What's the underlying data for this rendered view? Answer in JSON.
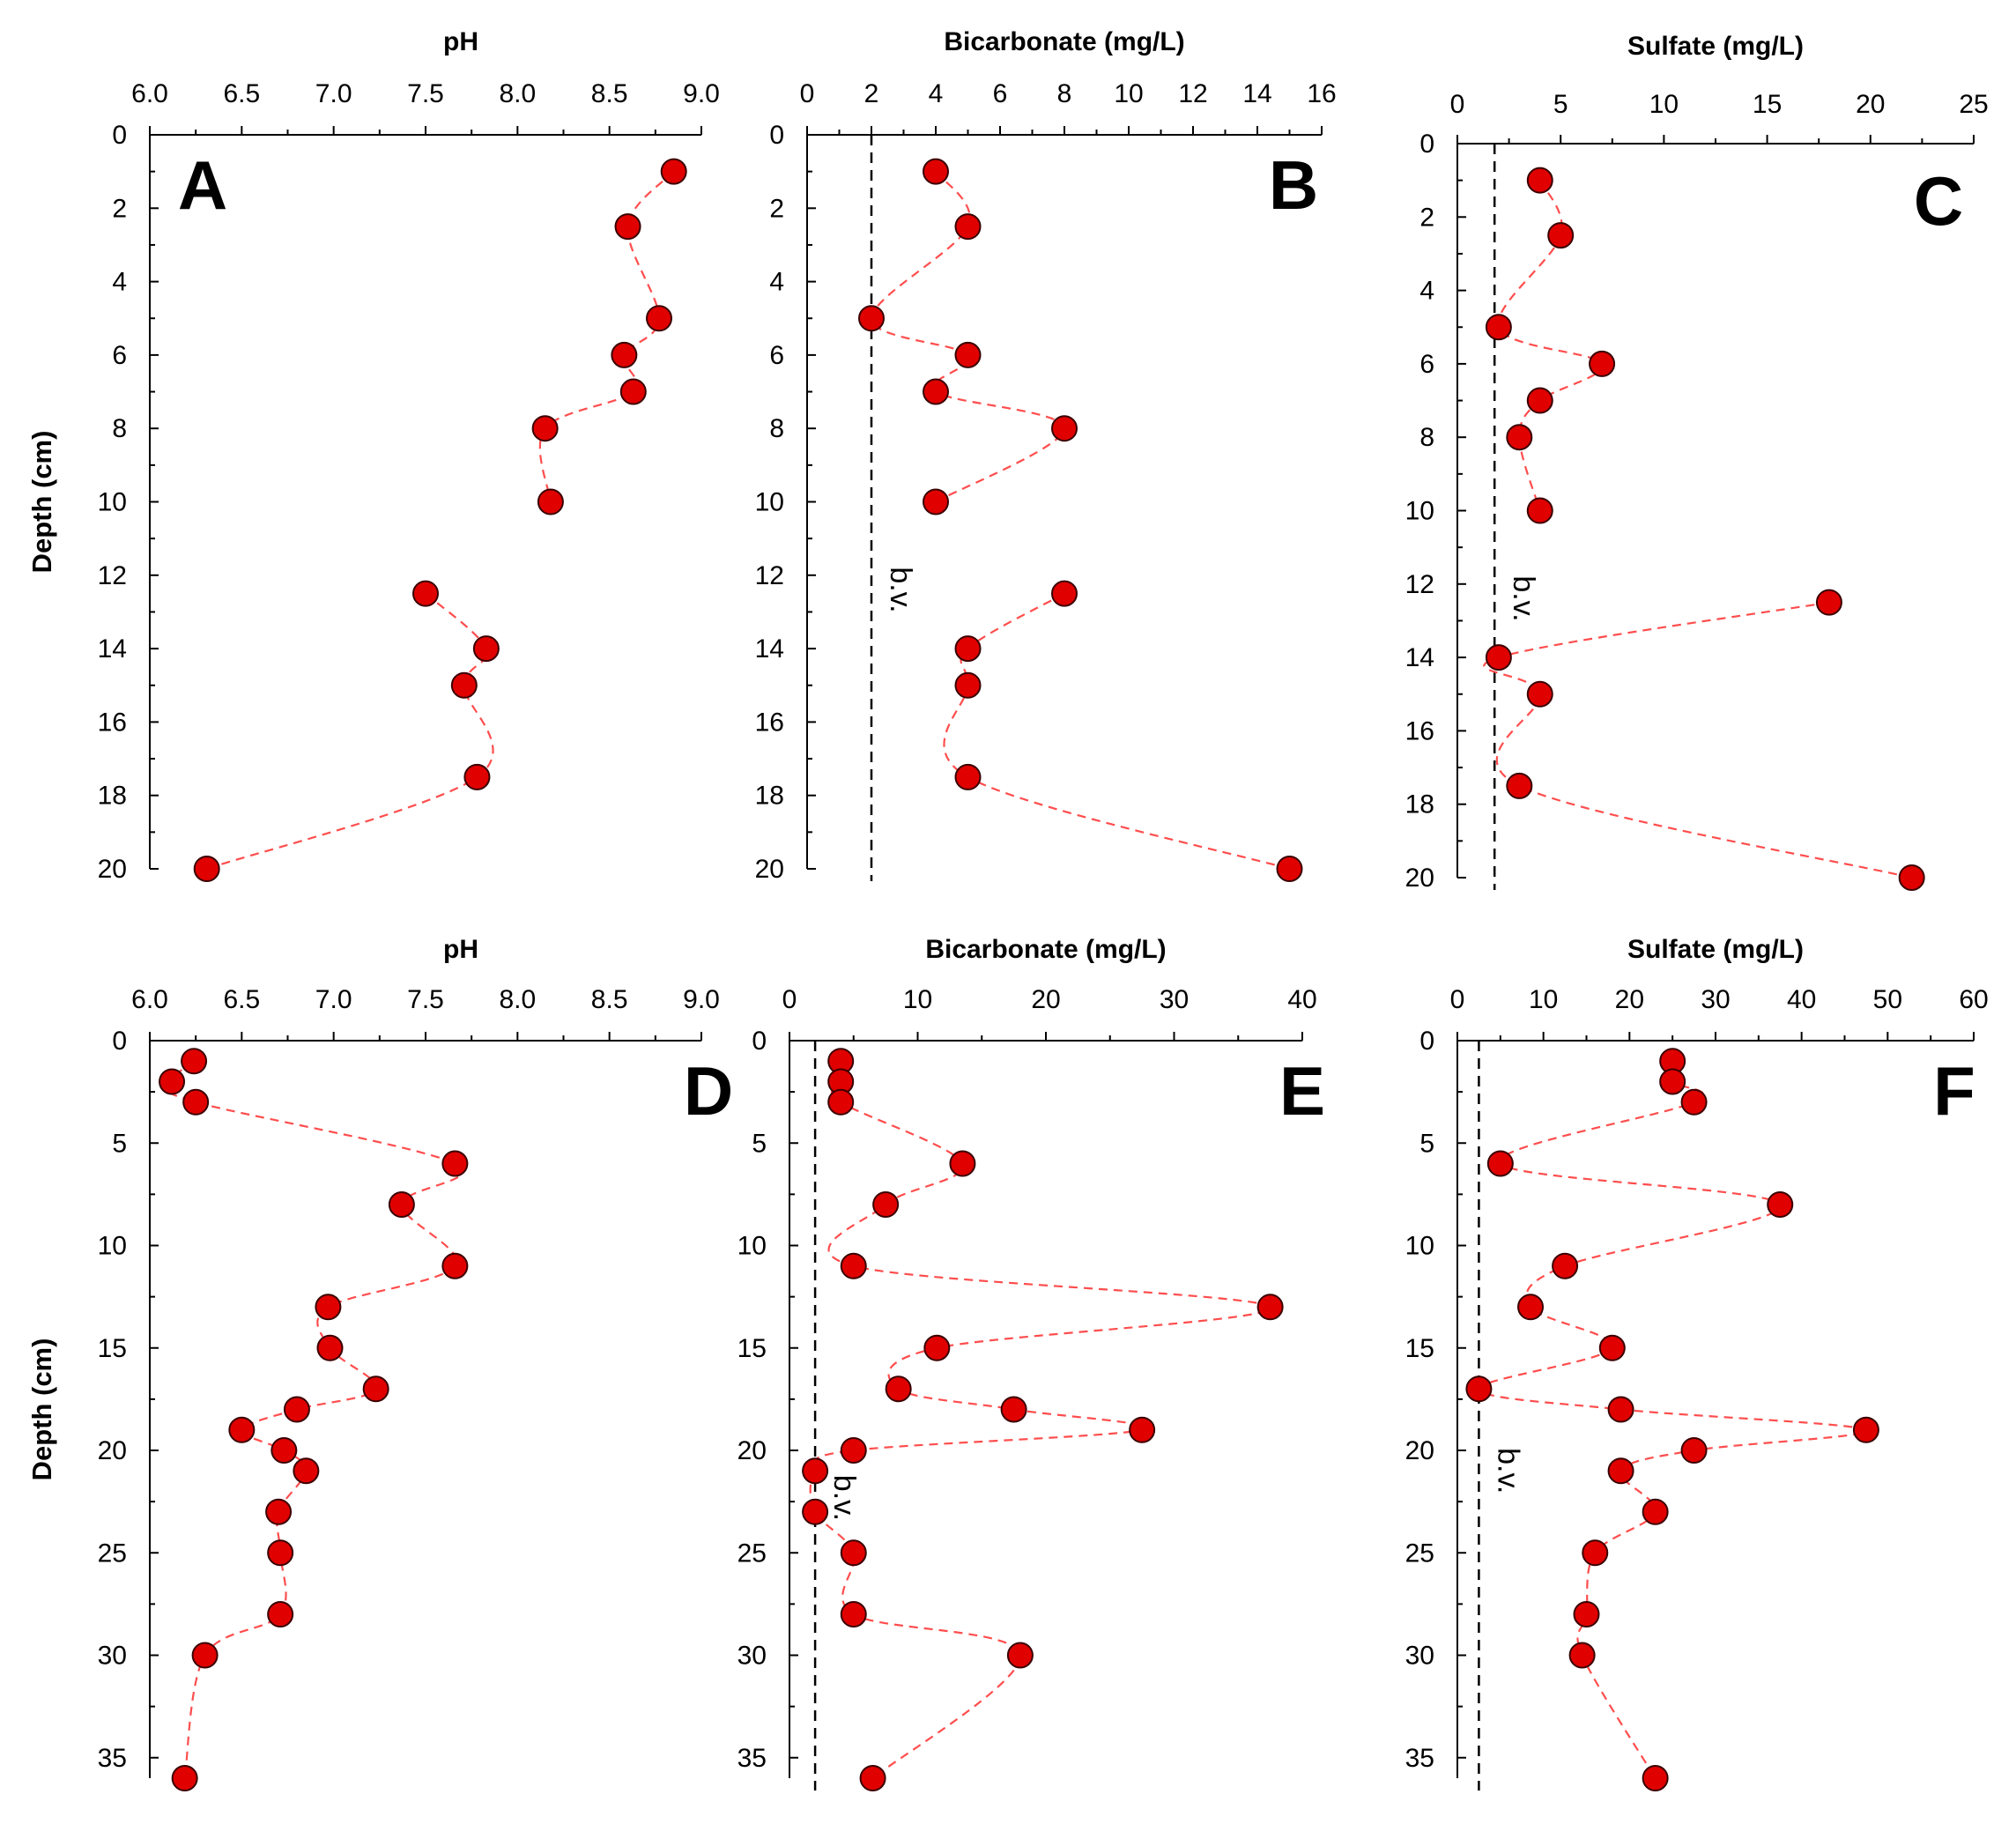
{
  "figure": {
    "ylabel": "Depth (cm)",
    "marker_color": "#e00000",
    "line_color": "#ff4d4d"
  },
  "chart_data": [
    {
      "panel": "A",
      "type": "line",
      "xlabel": "pH",
      "ylabel": "Depth (cm)",
      "xlim": [
        6.0,
        9.0
      ],
      "xticks": [
        6.0,
        6.5,
        7.0,
        7.5,
        8.0,
        8.5,
        9.0
      ],
      "ylim": [
        0,
        20
      ],
      "yticks": [
        0,
        2,
        4,
        6,
        8,
        10,
        12,
        14,
        16,
        18,
        20
      ],
      "segments": [
        {
          "x": [
            8.85,
            8.6,
            8.77,
            8.58,
            8.63,
            8.15,
            8.18
          ],
          "y": [
            1,
            2.5,
            5,
            6,
            7,
            8,
            10
          ]
        },
        {
          "x": [
            7.5,
            7.83,
            7.71,
            7.78,
            6.31
          ],
          "y": [
            12.5,
            14,
            15,
            17.5,
            20
          ]
        }
      ]
    },
    {
      "panel": "B",
      "type": "line",
      "xlabel": "Bicarbonate (mg/L)",
      "ylabel": "",
      "xlim": [
        0,
        16
      ],
      "xticks": [
        0,
        2,
        4,
        6,
        8,
        10,
        12,
        14,
        16
      ],
      "ylim": [
        0,
        20
      ],
      "yticks": [
        0,
        2,
        4,
        6,
        8,
        10,
        12,
        14,
        16,
        18,
        20
      ],
      "bv": 2,
      "bv_label": "b.v.",
      "segments": [
        {
          "x": [
            4,
            5,
            2,
            5,
            4,
            8,
            4
          ],
          "y": [
            1,
            2.5,
            5,
            6,
            7,
            8,
            10
          ]
        },
        {
          "x": [
            8,
            5,
            5,
            5,
            15
          ],
          "y": [
            12.5,
            14,
            15,
            17.5,
            20
          ]
        }
      ]
    },
    {
      "panel": "C",
      "type": "line",
      "xlabel": "Sulfate (mg/L)",
      "ylabel": "",
      "xlim": [
        0,
        25
      ],
      "xticks": [
        0,
        5,
        10,
        15,
        20,
        25
      ],
      "ylim": [
        0,
        20
      ],
      "yticks": [
        0,
        2,
        4,
        6,
        8,
        10,
        12,
        14,
        16,
        18,
        20
      ],
      "bv": 1.8,
      "bv_label": "b.v.",
      "segments": [
        {
          "x": [
            4,
            5,
            2,
            7,
            4,
            3,
            4
          ],
          "y": [
            1,
            2.5,
            5,
            6,
            7,
            8,
            10
          ]
        },
        {
          "x": [
            18,
            2,
            4,
            3,
            22
          ],
          "y": [
            12.5,
            14,
            15,
            17.5,
            20
          ]
        }
      ]
    },
    {
      "panel": "D",
      "type": "line",
      "xlabel": "pH",
      "ylabel": "Depth (cm)",
      "xlim": [
        6.0,
        9.0
      ],
      "xticks": [
        6.0,
        6.5,
        7.0,
        7.5,
        8.0,
        8.5,
        9.0
      ],
      "ylim": [
        0,
        36
      ],
      "yticks": [
        0,
        5,
        10,
        15,
        20,
        25,
        30,
        35
      ],
      "segments": [
        {
          "x": [
            6.24,
            6.12,
            6.25,
            7.66,
            7.37,
            7.66,
            6.97,
            6.98,
            7.23,
            6.8,
            6.5,
            6.73,
            6.85,
            6.7,
            6.71,
            6.71,
            6.3,
            6.19
          ],
          "y": [
            1,
            2,
            3,
            6,
            8,
            11,
            13,
            15,
            17,
            18,
            19,
            20,
            21,
            23,
            25,
            28,
            30,
            36
          ]
        }
      ]
    },
    {
      "panel": "E",
      "type": "line",
      "xlabel": "Bicarbonate (mg/L)",
      "ylabel": "",
      "xlim": [
        0,
        40
      ],
      "xticks": [
        0,
        10,
        20,
        30,
        40
      ],
      "ylim": [
        0,
        36
      ],
      "yticks": [
        0,
        5,
        10,
        15,
        20,
        25,
        30,
        35
      ],
      "bv": 2,
      "bv_label": "b.v.",
      "segments": [
        {
          "x": [
            4,
            4,
            4,
            13.5,
            7.5,
            5,
            37.5,
            11.5,
            8.5,
            17.5,
            27.5,
            5,
            2,
            2,
            5,
            5,
            18,
            6.5
          ],
          "y": [
            1,
            2,
            3,
            6,
            8,
            11,
            13,
            15,
            17,
            18,
            19,
            20,
            21,
            23,
            25,
            28,
            30,
            36
          ]
        }
      ]
    },
    {
      "panel": "F",
      "type": "line",
      "xlabel": "Sulfate (mg/L)",
      "ylabel": "",
      "xlim": [
        0,
        60
      ],
      "xticks": [
        0,
        10,
        20,
        30,
        40,
        50,
        60
      ],
      "ylim": [
        0,
        36
      ],
      "yticks": [
        0,
        5,
        10,
        15,
        20,
        25,
        30,
        35
      ],
      "bv": 2.5,
      "bv_label": "b.v.",
      "segments": [
        {
          "x": [
            25,
            25,
            27.5,
            5,
            37.5,
            12.5,
            8.5,
            18,
            2.5,
            19,
            47.5,
            27.5,
            19,
            23,
            16,
            15,
            14.5,
            23
          ],
          "y": [
            1,
            2,
            3,
            6,
            8,
            11,
            13,
            15,
            17,
            18,
            19,
            20,
            21,
            23,
            25,
            28,
            30,
            36
          ]
        }
      ]
    }
  ]
}
